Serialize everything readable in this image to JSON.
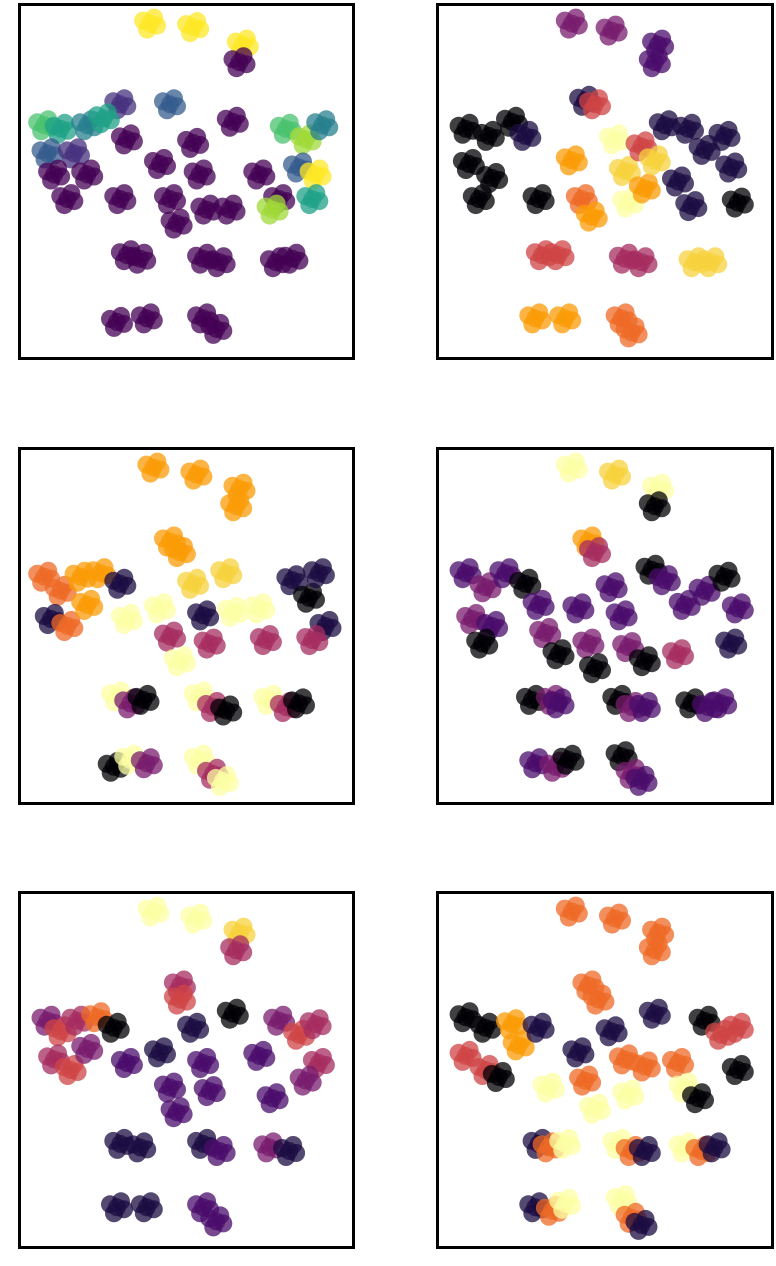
{
  "chart_data": [
    {
      "type": "scatter",
      "axes": "hidden",
      "grid": false,
      "colormap": "viridis",
      "palette": [
        "#440154",
        "#46327e",
        "#365c8d",
        "#277f8e",
        "#1fa187",
        "#4ac16d",
        "#a0da39",
        "#fde725"
      ],
      "points": [
        [
          0.39,
          0.05,
          7
        ],
        [
          0.52,
          0.06,
          7
        ],
        [
          0.67,
          0.11,
          7
        ],
        [
          0.66,
          0.16,
          0
        ],
        [
          0.3,
          0.28,
          1
        ],
        [
          0.45,
          0.28,
          2
        ],
        [
          0.64,
          0.33,
          0
        ],
        [
          0.07,
          0.34,
          5
        ],
        [
          0.12,
          0.35,
          4
        ],
        [
          0.2,
          0.34,
          3
        ],
        [
          0.25,
          0.32,
          4
        ],
        [
          0.08,
          0.42,
          2
        ],
        [
          0.16,
          0.42,
          1
        ],
        [
          0.1,
          0.48,
          0
        ],
        [
          0.2,
          0.48,
          0
        ],
        [
          0.14,
          0.55,
          0
        ],
        [
          0.3,
          0.55,
          0
        ],
        [
          0.32,
          0.38,
          0
        ],
        [
          0.42,
          0.45,
          0
        ],
        [
          0.45,
          0.55,
          0
        ],
        [
          0.47,
          0.62,
          0
        ],
        [
          0.52,
          0.39,
          0
        ],
        [
          0.54,
          0.48,
          0
        ],
        [
          0.56,
          0.58,
          0
        ],
        [
          0.63,
          0.58,
          0
        ],
        [
          0.72,
          0.48,
          0
        ],
        [
          0.78,
          0.55,
          0
        ],
        [
          0.8,
          0.35,
          5
        ],
        [
          0.86,
          0.38,
          6
        ],
        [
          0.91,
          0.34,
          3
        ],
        [
          0.84,
          0.46,
          2
        ],
        [
          0.89,
          0.48,
          7
        ],
        [
          0.76,
          0.58,
          6
        ],
        [
          0.88,
          0.55,
          4
        ],
        [
          0.32,
          0.71,
          0
        ],
        [
          0.36,
          0.72,
          0
        ],
        [
          0.55,
          0.72,
          0
        ],
        [
          0.6,
          0.73,
          0
        ],
        [
          0.77,
          0.73,
          0
        ],
        [
          0.82,
          0.72,
          0
        ],
        [
          0.29,
          0.9,
          0
        ],
        [
          0.38,
          0.89,
          0
        ],
        [
          0.55,
          0.89,
          0
        ],
        [
          0.59,
          0.92,
          0
        ]
      ]
    },
    {
      "type": "scatter",
      "axes": "hidden",
      "grid": false,
      "colormap": "inferno",
      "palette": [
        "#000004",
        "#1b0c41",
        "#4a0c6b",
        "#781c6d",
        "#a52c60",
        "#cf4446",
        "#ed6925",
        "#fb9b06",
        "#f7d13d",
        "#fcffa4"
      ],
      "points": [
        [
          0.4,
          0.05,
          3
        ],
        [
          0.52,
          0.07,
          3
        ],
        [
          0.66,
          0.11,
          2
        ],
        [
          0.65,
          0.16,
          2
        ],
        [
          0.44,
          0.27,
          1
        ],
        [
          0.47,
          0.28,
          5
        ],
        [
          0.08,
          0.35,
          0
        ],
        [
          0.15,
          0.37,
          0
        ],
        [
          0.22,
          0.33,
          0
        ],
        [
          0.26,
          0.37,
          1
        ],
        [
          0.09,
          0.45,
          0
        ],
        [
          0.16,
          0.49,
          0
        ],
        [
          0.12,
          0.55,
          0
        ],
        [
          0.3,
          0.55,
          0
        ],
        [
          0.4,
          0.44,
          7
        ],
        [
          0.43,
          0.55,
          6
        ],
        [
          0.46,
          0.6,
          7
        ],
        [
          0.53,
          0.38,
          9
        ],
        [
          0.56,
          0.47,
          8
        ],
        [
          0.57,
          0.56,
          9
        ],
        [
          0.61,
          0.4,
          5
        ],
        [
          0.62,
          0.52,
          7
        ],
        [
          0.65,
          0.44,
          8
        ],
        [
          0.68,
          0.34,
          1
        ],
        [
          0.75,
          0.35,
          1
        ],
        [
          0.8,
          0.41,
          1
        ],
        [
          0.86,
          0.37,
          1
        ],
        [
          0.88,
          0.46,
          1
        ],
        [
          0.72,
          0.5,
          1
        ],
        [
          0.9,
          0.56,
          0
        ],
        [
          0.76,
          0.57,
          1
        ],
        [
          0.31,
          0.71,
          5
        ],
        [
          0.36,
          0.71,
          5
        ],
        [
          0.56,
          0.72,
          4
        ],
        [
          0.61,
          0.73,
          4
        ],
        [
          0.77,
          0.73,
          8
        ],
        [
          0.82,
          0.73,
          8
        ],
        [
          0.29,
          0.89,
          7
        ],
        [
          0.38,
          0.89,
          7
        ],
        [
          0.55,
          0.89,
          6
        ],
        [
          0.58,
          0.93,
          6
        ]
      ]
    },
    {
      "type": "scatter",
      "axes": "hidden",
      "grid": false,
      "colormap": "inferno",
      "palette": [
        "#000004",
        "#1b0c41",
        "#4a0c6b",
        "#781c6d",
        "#a52c60",
        "#cf4446",
        "#ed6925",
        "#fb9b06",
        "#f7d13d",
        "#fcffa4"
      ],
      "points": [
        [
          0.4,
          0.05,
          7
        ],
        [
          0.53,
          0.07,
          7
        ],
        [
          0.66,
          0.11,
          7
        ],
        [
          0.65,
          0.16,
          7
        ],
        [
          0.45,
          0.26,
          7
        ],
        [
          0.48,
          0.29,
          7
        ],
        [
          0.07,
          0.36,
          6
        ],
        [
          0.12,
          0.4,
          6
        ],
        [
          0.18,
          0.36,
          7
        ],
        [
          0.24,
          0.35,
          7
        ],
        [
          0.09,
          0.48,
          1
        ],
        [
          0.14,
          0.5,
          6
        ],
        [
          0.2,
          0.44,
          7
        ],
        [
          0.3,
          0.38,
          1
        ],
        [
          0.32,
          0.48,
          9
        ],
        [
          0.42,
          0.45,
          9
        ],
        [
          0.45,
          0.53,
          4
        ],
        [
          0.48,
          0.6,
          9
        ],
        [
          0.52,
          0.38,
          8
        ],
        [
          0.55,
          0.47,
          1
        ],
        [
          0.57,
          0.55,
          4
        ],
        [
          0.62,
          0.35,
          8
        ],
        [
          0.64,
          0.46,
          9
        ],
        [
          0.72,
          0.45,
          9
        ],
        [
          0.74,
          0.54,
          4
        ],
        [
          0.82,
          0.37,
          1
        ],
        [
          0.87,
          0.42,
          0
        ],
        [
          0.9,
          0.35,
          1
        ],
        [
          0.92,
          0.5,
          1
        ],
        [
          0.88,
          0.54,
          4
        ],
        [
          0.29,
          0.7,
          9
        ],
        [
          0.33,
          0.72,
          3
        ],
        [
          0.37,
          0.71,
          0
        ],
        [
          0.54,
          0.7,
          9
        ],
        [
          0.58,
          0.73,
          4
        ],
        [
          0.62,
          0.74,
          0
        ],
        [
          0.75,
          0.71,
          9
        ],
        [
          0.8,
          0.73,
          4
        ],
        [
          0.84,
          0.72,
          0
        ],
        [
          0.28,
          0.9,
          0
        ],
        [
          0.33,
          0.88,
          9
        ],
        [
          0.38,
          0.89,
          3
        ],
        [
          0.54,
          0.88,
          9
        ],
        [
          0.58,
          0.92,
          4
        ],
        [
          0.61,
          0.94,
          9
        ]
      ]
    },
    {
      "type": "scatter",
      "axes": "hidden",
      "grid": false,
      "colormap": "inferno",
      "palette": [
        "#000004",
        "#1b0c41",
        "#4a0c6b",
        "#781c6d",
        "#a52c60",
        "#cf4446",
        "#ed6925",
        "#fb9b06",
        "#f7d13d",
        "#fcffa4"
      ],
      "points": [
        [
          0.4,
          0.05,
          9
        ],
        [
          0.53,
          0.07,
          8
        ],
        [
          0.66,
          0.11,
          9
        ],
        [
          0.65,
          0.16,
          0
        ],
        [
          0.45,
          0.26,
          7
        ],
        [
          0.47,
          0.29,
          4
        ],
        [
          0.08,
          0.35,
          2
        ],
        [
          0.14,
          0.39,
          3
        ],
        [
          0.2,
          0.35,
          2
        ],
        [
          0.26,
          0.38,
          0
        ],
        [
          0.1,
          0.48,
          3
        ],
        [
          0.16,
          0.5,
          2
        ],
        [
          0.13,
          0.55,
          0
        ],
        [
          0.3,
          0.44,
          2
        ],
        [
          0.32,
          0.52,
          3
        ],
        [
          0.36,
          0.58,
          0
        ],
        [
          0.42,
          0.45,
          2
        ],
        [
          0.45,
          0.55,
          3
        ],
        [
          0.47,
          0.62,
          0
        ],
        [
          0.52,
          0.39,
          2
        ],
        [
          0.55,
          0.47,
          2
        ],
        [
          0.57,
          0.56,
          3
        ],
        [
          0.62,
          0.6,
          0
        ],
        [
          0.64,
          0.34,
          0
        ],
        [
          0.68,
          0.37,
          2
        ],
        [
          0.74,
          0.44,
          2
        ],
        [
          0.8,
          0.4,
          2
        ],
        [
          0.86,
          0.36,
          0
        ],
        [
          0.9,
          0.45,
          2
        ],
        [
          0.88,
          0.55,
          1
        ],
        [
          0.72,
          0.58,
          4
        ],
        [
          0.28,
          0.71,
          0
        ],
        [
          0.34,
          0.71,
          3
        ],
        [
          0.36,
          0.72,
          2
        ],
        [
          0.54,
          0.71,
          0
        ],
        [
          0.58,
          0.73,
          3
        ],
        [
          0.62,
          0.73,
          2
        ],
        [
          0.76,
          0.72,
          0
        ],
        [
          0.81,
          0.73,
          2
        ],
        [
          0.85,
          0.72,
          2
        ],
        [
          0.29,
          0.89,
          2
        ],
        [
          0.35,
          0.9,
          3
        ],
        [
          0.39,
          0.88,
          0
        ],
        [
          0.55,
          0.87,
          0
        ],
        [
          0.58,
          0.92,
          3
        ],
        [
          0.61,
          0.94,
          2
        ]
      ]
    },
    {
      "type": "scatter",
      "axes": "hidden",
      "grid": false,
      "colormap": "inferno",
      "palette": [
        "#000004",
        "#1b0c41",
        "#4a0c6b",
        "#781c6d",
        "#a52c60",
        "#cf4446",
        "#ed6925",
        "#fb9b06",
        "#f7d13d",
        "#fcffa4"
      ],
      "points": [
        [
          0.4,
          0.05,
          9
        ],
        [
          0.53,
          0.07,
          9
        ],
        [
          0.66,
          0.11,
          8
        ],
        [
          0.65,
          0.16,
          4
        ],
        [
          0.48,
          0.26,
          4
        ],
        [
          0.48,
          0.3,
          5
        ],
        [
          0.08,
          0.36,
          3
        ],
        [
          0.12,
          0.39,
          5
        ],
        [
          0.17,
          0.36,
          4
        ],
        [
          0.23,
          0.35,
          6
        ],
        [
          0.1,
          0.47,
          4
        ],
        [
          0.15,
          0.5,
          5
        ],
        [
          0.2,
          0.44,
          3
        ],
        [
          0.28,
          0.38,
          0
        ],
        [
          0.32,
          0.48,
          2
        ],
        [
          0.42,
          0.45,
          1
        ],
        [
          0.45,
          0.55,
          2
        ],
        [
          0.47,
          0.62,
          2
        ],
        [
          0.52,
          0.38,
          1
        ],
        [
          0.55,
          0.48,
          2
        ],
        [
          0.57,
          0.56,
          2
        ],
        [
          0.64,
          0.34,
          0
        ],
        [
          0.72,
          0.46,
          2
        ],
        [
          0.78,
          0.36,
          3
        ],
        [
          0.84,
          0.4,
          5
        ],
        [
          0.89,
          0.37,
          4
        ],
        [
          0.9,
          0.48,
          4
        ],
        [
          0.86,
          0.53,
          3
        ],
        [
          0.76,
          0.58,
          2
        ],
        [
          0.3,
          0.71,
          1
        ],
        [
          0.36,
          0.72,
          1
        ],
        [
          0.55,
          0.71,
          1
        ],
        [
          0.6,
          0.73,
          2
        ],
        [
          0.75,
          0.72,
          3
        ],
        [
          0.81,
          0.73,
          1
        ],
        [
          0.29,
          0.89,
          1
        ],
        [
          0.38,
          0.89,
          1
        ],
        [
          0.55,
          0.89,
          2
        ],
        [
          0.59,
          0.93,
          2
        ]
      ]
    },
    {
      "type": "scatter",
      "axes": "hidden",
      "grid": false,
      "colormap": "inferno",
      "palette": [
        "#000004",
        "#1b0c41",
        "#4a0c6b",
        "#781c6d",
        "#a52c60",
        "#cf4446",
        "#ed6925",
        "#fb9b06",
        "#f7d13d",
        "#fcffa4"
      ],
      "points": [
        [
          0.4,
          0.05,
          6
        ],
        [
          0.53,
          0.07,
          6
        ],
        [
          0.66,
          0.11,
          6
        ],
        [
          0.65,
          0.16,
          6
        ],
        [
          0.45,
          0.26,
          6
        ],
        [
          0.48,
          0.3,
          6
        ],
        [
          0.08,
          0.35,
          0
        ],
        [
          0.14,
          0.38,
          0
        ],
        [
          0.22,
          0.37,
          7
        ],
        [
          0.24,
          0.43,
          7
        ],
        [
          0.08,
          0.46,
          5
        ],
        [
          0.14,
          0.5,
          5
        ],
        [
          0.18,
          0.52,
          0
        ],
        [
          0.3,
          0.38,
          1
        ],
        [
          0.33,
          0.55,
          9
        ],
        [
          0.42,
          0.45,
          1
        ],
        [
          0.44,
          0.53,
          6
        ],
        [
          0.47,
          0.61,
          9
        ],
        [
          0.52,
          0.39,
          1
        ],
        [
          0.56,
          0.47,
          6
        ],
        [
          0.57,
          0.57,
          9
        ],
        [
          0.62,
          0.49,
          6
        ],
        [
          0.65,
          0.34,
          1
        ],
        [
          0.72,
          0.48,
          6
        ],
        [
          0.74,
          0.55,
          9
        ],
        [
          0.8,
          0.36,
          0
        ],
        [
          0.85,
          0.4,
          5
        ],
        [
          0.9,
          0.38,
          5
        ],
        [
          0.9,
          0.5,
          0
        ],
        [
          0.78,
          0.58,
          0
        ],
        [
          0.3,
          0.71,
          1
        ],
        [
          0.33,
          0.72,
          6
        ],
        [
          0.38,
          0.71,
          9
        ],
        [
          0.54,
          0.71,
          9
        ],
        [
          0.58,
          0.73,
          6
        ],
        [
          0.62,
          0.73,
          1
        ],
        [
          0.74,
          0.72,
          9
        ],
        [
          0.79,
          0.73,
          6
        ],
        [
          0.83,
          0.72,
          1
        ],
        [
          0.29,
          0.89,
          1
        ],
        [
          0.34,
          0.9,
          6
        ],
        [
          0.38,
          0.88,
          9
        ],
        [
          0.55,
          0.87,
          9
        ],
        [
          0.58,
          0.92,
          6
        ],
        [
          0.61,
          0.94,
          1
        ]
      ]
    }
  ]
}
